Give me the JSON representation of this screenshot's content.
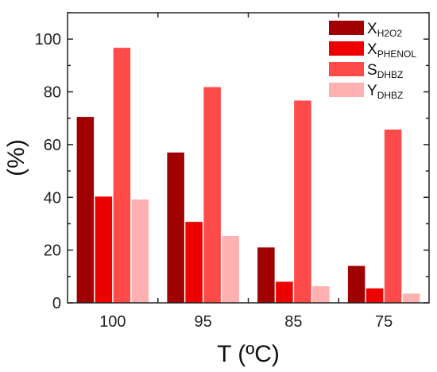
{
  "chart_data": {
    "type": "bar",
    "xlabel": "T (ºC)",
    "ylabel": "(%)",
    "categories": [
      "100",
      "95",
      "85",
      "75"
    ],
    "ylim": [
      0,
      110
    ],
    "yticks": [
      0,
      20,
      40,
      60,
      80,
      100
    ],
    "legend_position": "top-right",
    "grid": false,
    "series": [
      {
        "name_main": "X",
        "name_sub": "H2O2",
        "color": "#a00000",
        "values": [
          70.5,
          57,
          21,
          14
        ]
      },
      {
        "name_main": "X",
        "name_sub": "PHENOL",
        "color": "#ee0000",
        "values": [
          40.3,
          30.7,
          8,
          5.5
        ]
      },
      {
        "name_main": "S",
        "name_sub": "DHBZ",
        "color": "#ff4a4a",
        "values": [
          96.7,
          81.8,
          76.7,
          65.7
        ]
      },
      {
        "name_main": "Y",
        "name_sub": "DHBZ",
        "color": "#ffb0b0",
        "values": [
          39.2,
          25.3,
          6.3,
          3.5
        ]
      }
    ]
  }
}
